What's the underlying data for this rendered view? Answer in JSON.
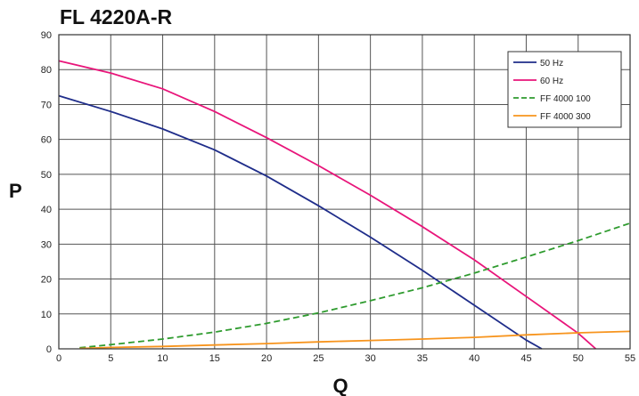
{
  "chart_data": {
    "type": "line",
    "title": "FL 4220A-R",
    "xlabel": "Q",
    "ylabel": "P",
    "xlim": [
      0,
      55
    ],
    "ylim": [
      0,
      90
    ],
    "x_ticks": [
      "0",
      "5",
      "10",
      "15",
      "20",
      "25",
      "30",
      "35",
      "40",
      "45",
      "50",
      "55"
    ],
    "y_ticks": [
      "0",
      "10",
      "20",
      "30",
      "40",
      "50",
      "60",
      "70",
      "80",
      "90"
    ],
    "grid": true,
    "legend_position": "top-right",
    "series": [
      {
        "name": "50 Hz",
        "color": "#1f2d8a",
        "dash": false,
        "points": [
          [
            0,
            72.5
          ],
          [
            5,
            68
          ],
          [
            10,
            63
          ],
          [
            15,
            57
          ],
          [
            20,
            49.5
          ],
          [
            25,
            41
          ],
          [
            30,
            32
          ],
          [
            35,
            22.5
          ],
          [
            40,
            12.5
          ],
          [
            45,
            2.5
          ],
          [
            46.5,
            0
          ]
        ]
      },
      {
        "name": "60 Hz",
        "color": "#e8157a",
        "dash": false,
        "points": [
          [
            0,
            82.5
          ],
          [
            5,
            79
          ],
          [
            10,
            74.5
          ],
          [
            15,
            68
          ],
          [
            20,
            60.5
          ],
          [
            25,
            52.5
          ],
          [
            30,
            44
          ],
          [
            35,
            35
          ],
          [
            40,
            25.5
          ],
          [
            45,
            15
          ],
          [
            50,
            4.5
          ],
          [
            51.7,
            0
          ]
        ]
      },
      {
        "name": "FF 4000 100",
        "color": "#2e9b2e",
        "dash": true,
        "points": [
          [
            2,
            0.3
          ],
          [
            5,
            1.2
          ],
          [
            10,
            2.8
          ],
          [
            15,
            4.8
          ],
          [
            20,
            7.3
          ],
          [
            25,
            10.3
          ],
          [
            30,
            13.8
          ],
          [
            35,
            17.5
          ],
          [
            40,
            21.7
          ],
          [
            45,
            26.3
          ],
          [
            50,
            31
          ],
          [
            55,
            36
          ]
        ]
      },
      {
        "name": "FF 4000 300",
        "color": "#f7941d",
        "dash": false,
        "points": [
          [
            2,
            0.1
          ],
          [
            5,
            0.4
          ],
          [
            10,
            0.7
          ],
          [
            15,
            1.1
          ],
          [
            20,
            1.5
          ],
          [
            25,
            2
          ],
          [
            30,
            2.4
          ],
          [
            35,
            2.8
          ],
          [
            40,
            3.3
          ],
          [
            45,
            4
          ],
          [
            50,
            4.6
          ],
          [
            55,
            5
          ]
        ]
      }
    ]
  }
}
